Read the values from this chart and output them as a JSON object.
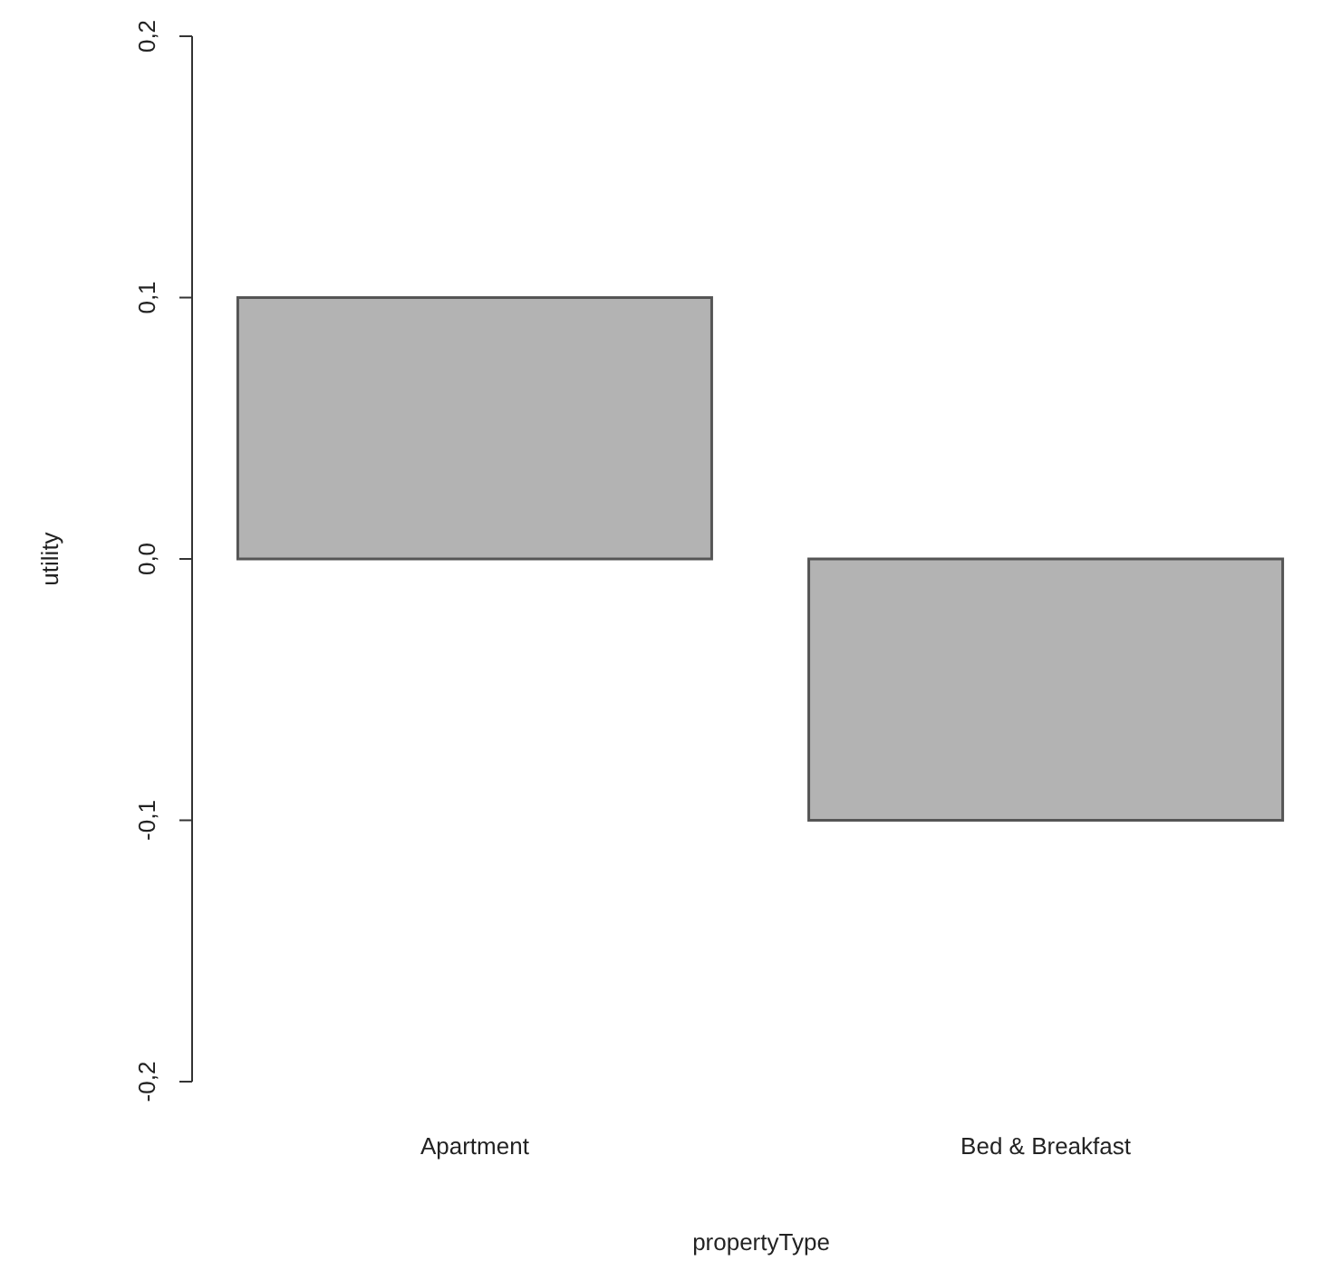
{
  "chart_data": {
    "type": "bar",
    "xlabel": "propertyType",
    "ylabel": "utility",
    "categories": [
      "Apartment",
      "Bed & Breakfast"
    ],
    "values": [
      0.1,
      -0.1
    ],
    "color": "#b3b3b3",
    "ylim": [
      -0.2,
      0.2
    ],
    "yticks": [
      {
        "value": -0.2,
        "label": "-0,2"
      },
      {
        "value": -0.1,
        "label": "-0,1"
      },
      {
        "value": 0,
        "label": "0,0"
      },
      {
        "value": 0.1,
        "label": "0,1"
      },
      {
        "value": 0.2,
        "label": "0,2"
      }
    ],
    "grid": false,
    "legend": false
  }
}
